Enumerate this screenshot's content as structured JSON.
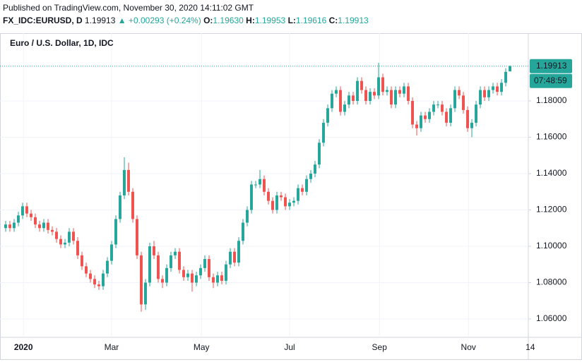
{
  "header": {
    "published": "Published on TradingView.com, November 30, 2020 14:11:02 GMT",
    "symbol": "FX_IDC:EURUSD, D",
    "last": "1.19913",
    "change": "▲ +0.00293 (+0.24%)",
    "o_label": "O:",
    "o": "1.19630",
    "h_label": "H:",
    "h": "1.19953",
    "l_label": "L:",
    "l": "1.19616",
    "c_label": "C:",
    "c": "1.19913"
  },
  "chart_data": {
    "type": "candlestick",
    "title": "Euro / U.S. Dollar, 1D, IDC",
    "up_color": "#26a69a",
    "down_color": "#ef5350",
    "grid": true,
    "open": [
      1.11,
      1.112,
      1.11,
      1.113,
      1.117,
      1.122,
      1.118,
      1.116,
      1.112,
      1.11,
      1.113,
      1.109,
      1.108,
      1.104,
      1.101,
      1.102,
      1.108,
      1.103,
      1.095,
      1.089,
      1.085,
      1.082,
      1.079,
      1.078,
      1.085,
      1.092,
      1.101,
      1.115,
      1.128,
      1.142,
      1.13,
      1.115,
      1.095,
      1.068,
      1.08,
      1.1,
      1.095,
      1.082,
      1.08,
      1.088,
      1.095,
      1.097,
      1.087,
      1.083,
      1.085,
      1.08,
      1.084,
      1.088,
      1.093,
      1.083,
      1.08,
      1.084,
      1.081,
      1.09,
      1.097,
      1.091,
      1.103,
      1.113,
      1.12,
      1.134,
      1.134,
      1.137,
      1.13,
      1.125,
      1.12,
      1.128,
      1.127,
      1.122,
      1.124,
      1.125,
      1.132,
      1.13,
      1.137,
      1.14,
      1.145,
      1.157,
      1.168,
      1.176,
      1.184,
      1.186,
      1.174,
      1.178,
      1.183,
      1.18,
      1.191,
      1.186,
      1.18,
      1.185,
      1.183,
      1.193,
      1.185,
      1.186,
      1.178,
      1.186,
      1.184,
      1.188,
      1.18,
      1.167,
      1.165,
      1.172,
      1.17,
      1.174,
      1.178,
      1.178,
      1.174,
      1.168,
      1.176,
      1.186,
      1.183,
      1.175,
      1.165,
      1.168,
      1.178,
      1.186,
      1.182,
      1.186,
      1.188,
      1.185,
      1.19,
      1.1963
    ],
    "high": [
      1.114,
      1.114,
      1.115,
      1.119,
      1.124,
      1.124,
      1.12,
      1.118,
      1.114,
      1.115,
      1.115,
      1.111,
      1.11,
      1.106,
      1.104,
      1.11,
      1.11,
      1.105,
      1.097,
      1.091,
      1.087,
      1.084,
      1.081,
      1.087,
      1.094,
      1.103,
      1.117,
      1.13,
      1.149,
      1.146,
      1.132,
      1.117,
      1.097,
      1.082,
      1.102,
      1.103,
      1.097,
      1.084,
      1.09,
      1.097,
      1.099,
      1.099,
      1.089,
      1.087,
      1.087,
      1.086,
      1.09,
      1.095,
      1.095,
      1.085,
      1.086,
      1.086,
      1.092,
      1.099,
      1.099,
      1.105,
      1.115,
      1.122,
      1.136,
      1.136,
      1.142,
      1.139,
      1.132,
      1.127,
      1.13,
      1.13,
      1.129,
      1.126,
      1.127,
      1.134,
      1.134,
      1.139,
      1.142,
      1.147,
      1.159,
      1.17,
      1.178,
      1.186,
      1.188,
      1.188,
      1.18,
      1.185,
      1.185,
      1.193,
      1.193,
      1.188,
      1.187,
      1.187,
      1.201,
      1.195,
      1.188,
      1.188,
      1.188,
      1.188,
      1.19,
      1.19,
      1.182,
      1.169,
      1.174,
      1.174,
      1.176,
      1.18,
      1.18,
      1.18,
      1.176,
      1.178,
      1.188,
      1.188,
      1.185,
      1.177,
      1.17,
      1.18,
      1.188,
      1.188,
      1.188,
      1.19,
      1.19,
      1.192,
      1.198,
      1.19953
    ],
    "low": [
      1.108,
      1.108,
      1.108,
      1.111,
      1.115,
      1.116,
      1.114,
      1.11,
      1.108,
      1.108,
      1.107,
      1.106,
      1.102,
      1.099,
      1.099,
      1.1,
      1.101,
      1.093,
      1.087,
      1.083,
      1.08,
      1.077,
      1.076,
      1.076,
      1.083,
      1.09,
      1.099,
      1.113,
      1.126,
      1.128,
      1.113,
      1.093,
      1.064,
      1.065,
      1.078,
      1.093,
      1.08,
      1.077,
      1.078,
      1.086,
      1.093,
      1.085,
      1.081,
      1.081,
      1.075,
      1.078,
      1.082,
      1.086,
      1.081,
      1.077,
      1.078,
      1.079,
      1.079,
      1.088,
      1.089,
      1.089,
      1.101,
      1.111,
      1.118,
      1.132,
      1.132,
      1.128,
      1.123,
      1.118,
      1.118,
      1.125,
      1.12,
      1.12,
      1.122,
      1.123,
      1.128,
      1.128,
      1.135,
      1.138,
      1.143,
      1.155,
      1.166,
      1.174,
      1.182,
      1.172,
      1.172,
      1.176,
      1.178,
      1.178,
      1.184,
      1.178,
      1.178,
      1.181,
      1.181,
      1.183,
      1.183,
      1.176,
      1.176,
      1.182,
      1.182,
      1.178,
      1.165,
      1.161,
      1.163,
      1.168,
      1.168,
      1.172,
      1.176,
      1.172,
      1.166,
      1.166,
      1.174,
      1.181,
      1.173,
      1.163,
      1.16,
      1.166,
      1.176,
      1.18,
      1.18,
      1.184,
      1.183,
      1.183,
      1.188,
      1.19616
    ],
    "close": [
      1.112,
      1.11,
      1.113,
      1.117,
      1.122,
      1.118,
      1.116,
      1.112,
      1.11,
      1.113,
      1.109,
      1.108,
      1.104,
      1.101,
      1.102,
      1.108,
      1.103,
      1.095,
      1.089,
      1.085,
      1.082,
      1.079,
      1.078,
      1.085,
      1.092,
      1.101,
      1.115,
      1.128,
      1.142,
      1.13,
      1.115,
      1.095,
      1.068,
      1.08,
      1.1,
      1.095,
      1.082,
      1.08,
      1.088,
      1.095,
      1.097,
      1.087,
      1.083,
      1.085,
      1.08,
      1.084,
      1.088,
      1.093,
      1.083,
      1.08,
      1.084,
      1.081,
      1.09,
      1.097,
      1.091,
      1.103,
      1.113,
      1.12,
      1.134,
      1.134,
      1.137,
      1.13,
      1.125,
      1.12,
      1.128,
      1.127,
      1.122,
      1.124,
      1.125,
      1.132,
      1.13,
      1.137,
      1.14,
      1.145,
      1.157,
      1.168,
      1.176,
      1.184,
      1.186,
      1.174,
      1.178,
      1.183,
      1.18,
      1.191,
      1.186,
      1.18,
      1.185,
      1.183,
      1.193,
      1.185,
      1.186,
      1.178,
      1.186,
      1.184,
      1.188,
      1.18,
      1.167,
      1.165,
      1.172,
      1.17,
      1.174,
      1.178,
      1.178,
      1.174,
      1.168,
      1.176,
      1.186,
      1.183,
      1.175,
      1.165,
      1.168,
      1.178,
      1.186,
      1.182,
      1.186,
      1.188,
      1.185,
      1.19,
      1.196,
      1.19913
    ],
    "xlim": [
      -1.33,
      123.33
    ],
    "xticks": [
      {
        "value": 4.2,
        "label": "2020"
      },
      {
        "value": 25,
        "label": "Mar"
      },
      {
        "value": 46.2,
        "label": "May"
      },
      {
        "value": 67,
        "label": "Jul"
      },
      {
        "value": 88.2,
        "label": "Sep"
      },
      {
        "value": 109.2,
        "label": "Nov"
      },
      {
        "value": 123.8,
        "label": "14"
      }
    ],
    "ylim": [
      1.0499,
      1.2173
    ],
    "yticks": [
      {
        "value": 1.06,
        "label": "1.06000"
      },
      {
        "value": 1.08,
        "label": "1.08000"
      },
      {
        "value": 1.1,
        "label": "1.10000"
      },
      {
        "value": 1.12,
        "label": "1.12000"
      },
      {
        "value": 1.14,
        "label": "1.14000"
      },
      {
        "value": 1.16,
        "label": "1.16000"
      },
      {
        "value": 1.18,
        "label": "1.18000"
      }
    ],
    "price_tag": "1.19913",
    "countdown": "07:48:59"
  }
}
